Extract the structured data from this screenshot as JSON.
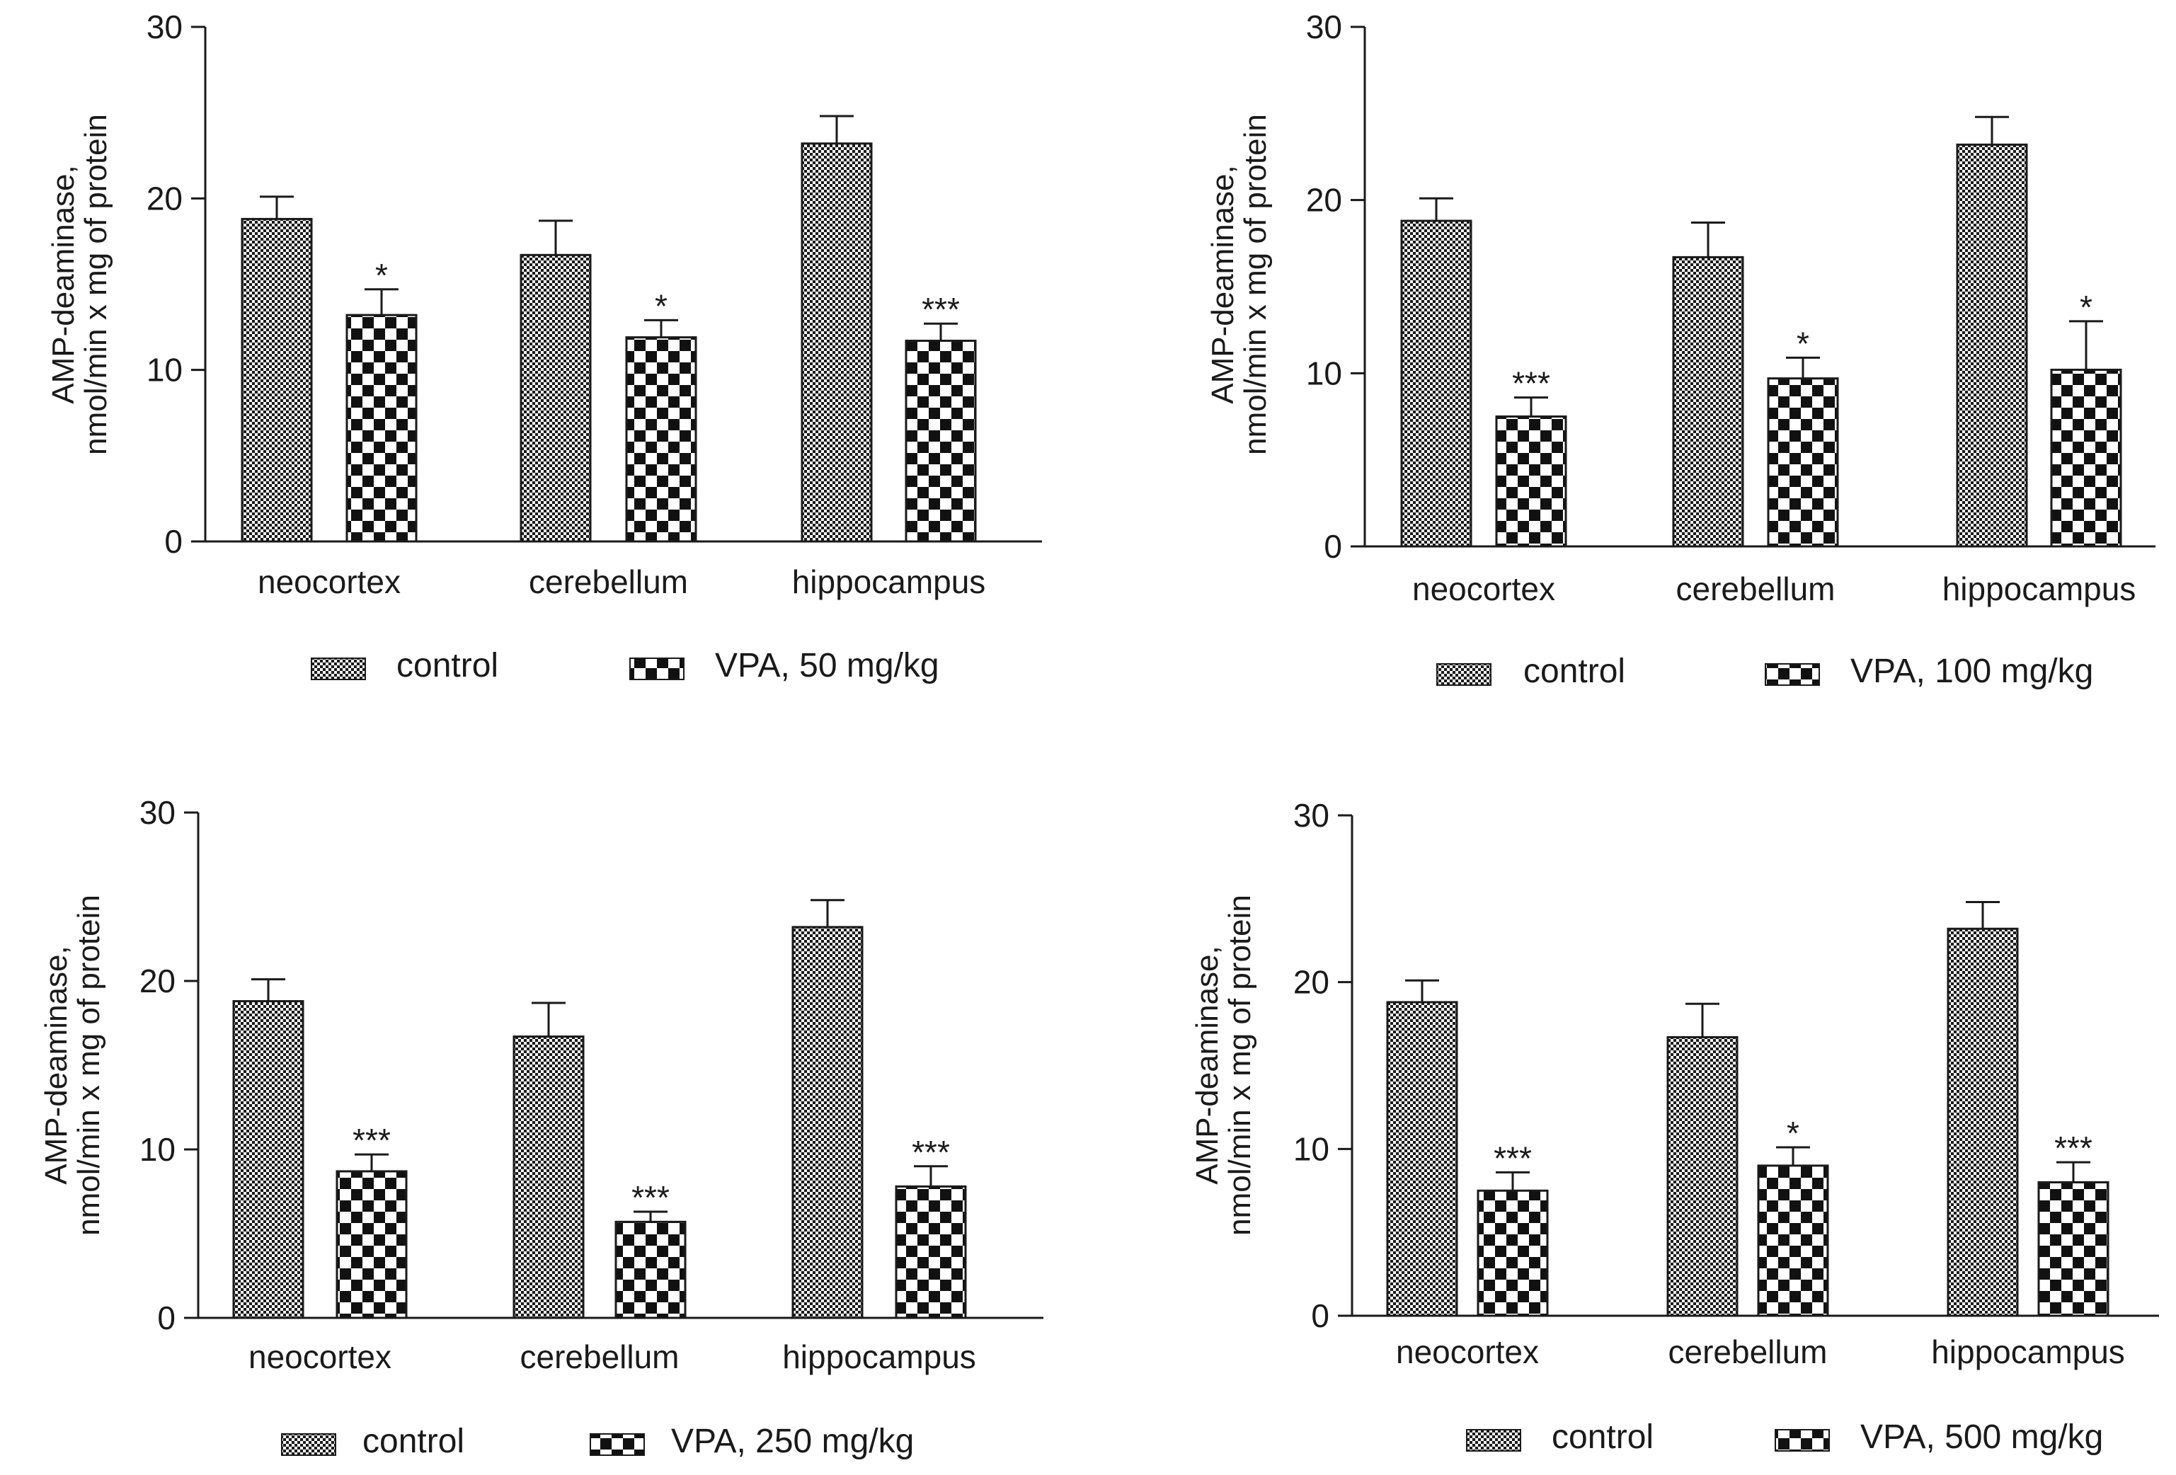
{
  "chart_data": [
    {
      "type": "bar",
      "title": "",
      "ylabel_line1": "AMP-deaminase,",
      "ylabel_line2": "nmol/min x mg of protein",
      "xlabel": "",
      "ylim": [
        0,
        30
      ],
      "yticks": [
        0,
        10,
        20,
        30
      ],
      "grid": false,
      "legend_position": "bottom",
      "categories": [
        "neocortex",
        "cerebellum",
        "hippocampus"
      ],
      "series": [
        {
          "name": "control",
          "pattern": "fine-check",
          "values": [
            18.8,
            16.7,
            23.2
          ],
          "errors": [
            1.3,
            2.0,
            1.6
          ],
          "annotations": [
            "",
            "",
            ""
          ]
        },
        {
          "name": "VPA, 50 mg/kg",
          "pattern": "coarse-check",
          "values": [
            13.2,
            11.9,
            11.7
          ],
          "errors": [
            1.5,
            1.0,
            1.0
          ],
          "annotations": [
            "*",
            "*",
            "***"
          ]
        }
      ]
    },
    {
      "type": "bar",
      "title": "",
      "ylabel_line1": "AMP-deaminase,",
      "ylabel_line2": "nmol/min x mg of protein",
      "xlabel": "",
      "ylim": [
        0,
        30
      ],
      "yticks": [
        0,
        10,
        20,
        30
      ],
      "grid": false,
      "legend_position": "bottom",
      "categories": [
        "neocortex",
        "cerebellum",
        "hippocampus"
      ],
      "series": [
        {
          "name": "control",
          "pattern": "fine-check",
          "values": [
            18.8,
            16.7,
            23.2
          ],
          "errors": [
            1.3,
            2.0,
            1.6
          ],
          "annotations": [
            "",
            "",
            ""
          ]
        },
        {
          "name": "VPA, 100 mg/kg",
          "pattern": "coarse-check",
          "values": [
            7.5,
            9.7,
            10.2
          ],
          "errors": [
            1.1,
            1.2,
            2.8
          ],
          "annotations": [
            "***",
            "*",
            "*"
          ]
        }
      ]
    },
    {
      "type": "bar",
      "title": "",
      "ylabel_line1": "AMP-deaminase,",
      "ylabel_line2": "nmol/min x mg of protein",
      "xlabel": "",
      "ylim": [
        0,
        30
      ],
      "yticks": [
        0,
        10,
        20,
        30
      ],
      "grid": false,
      "legend_position": "bottom",
      "categories": [
        "neocortex",
        "cerebellum",
        "hippocampus"
      ],
      "series": [
        {
          "name": "control",
          "pattern": "fine-check",
          "values": [
            18.8,
            16.7,
            23.2
          ],
          "errors": [
            1.3,
            2.0,
            1.6
          ],
          "annotations": [
            "",
            "",
            ""
          ]
        },
        {
          "name": "VPA, 250 mg/kg",
          "pattern": "coarse-check",
          "values": [
            8.7,
            5.7,
            7.8
          ],
          "errors": [
            1.0,
            0.6,
            1.2
          ],
          "annotations": [
            "***",
            "***",
            "***"
          ]
        }
      ]
    },
    {
      "type": "bar",
      "title": "",
      "ylabel_line1": "AMP-deaminase,",
      "ylabel_line2": "nmol/min x mg of protein",
      "xlabel": "",
      "ylim": [
        0,
        30
      ],
      "yticks": [
        0,
        10,
        20,
        30
      ],
      "grid": false,
      "legend_position": "bottom",
      "categories": [
        "neocortex",
        "cerebellum",
        "hippocampus"
      ],
      "series": [
        {
          "name": "control",
          "pattern": "fine-check",
          "values": [
            18.8,
            16.7,
            23.2
          ],
          "errors": [
            1.3,
            2.0,
            1.6
          ],
          "annotations": [
            "",
            "",
            ""
          ]
        },
        {
          "name": "VPA, 500 mg/kg",
          "pattern": "coarse-check",
          "values": [
            7.5,
            9.0,
            8.0
          ],
          "errors": [
            1.1,
            1.1,
            1.2
          ],
          "annotations": [
            "***",
            "*",
            "***"
          ]
        }
      ]
    }
  ],
  "colors": {
    "ink": "#1a1a1a",
    "background": "#ffffff"
  }
}
